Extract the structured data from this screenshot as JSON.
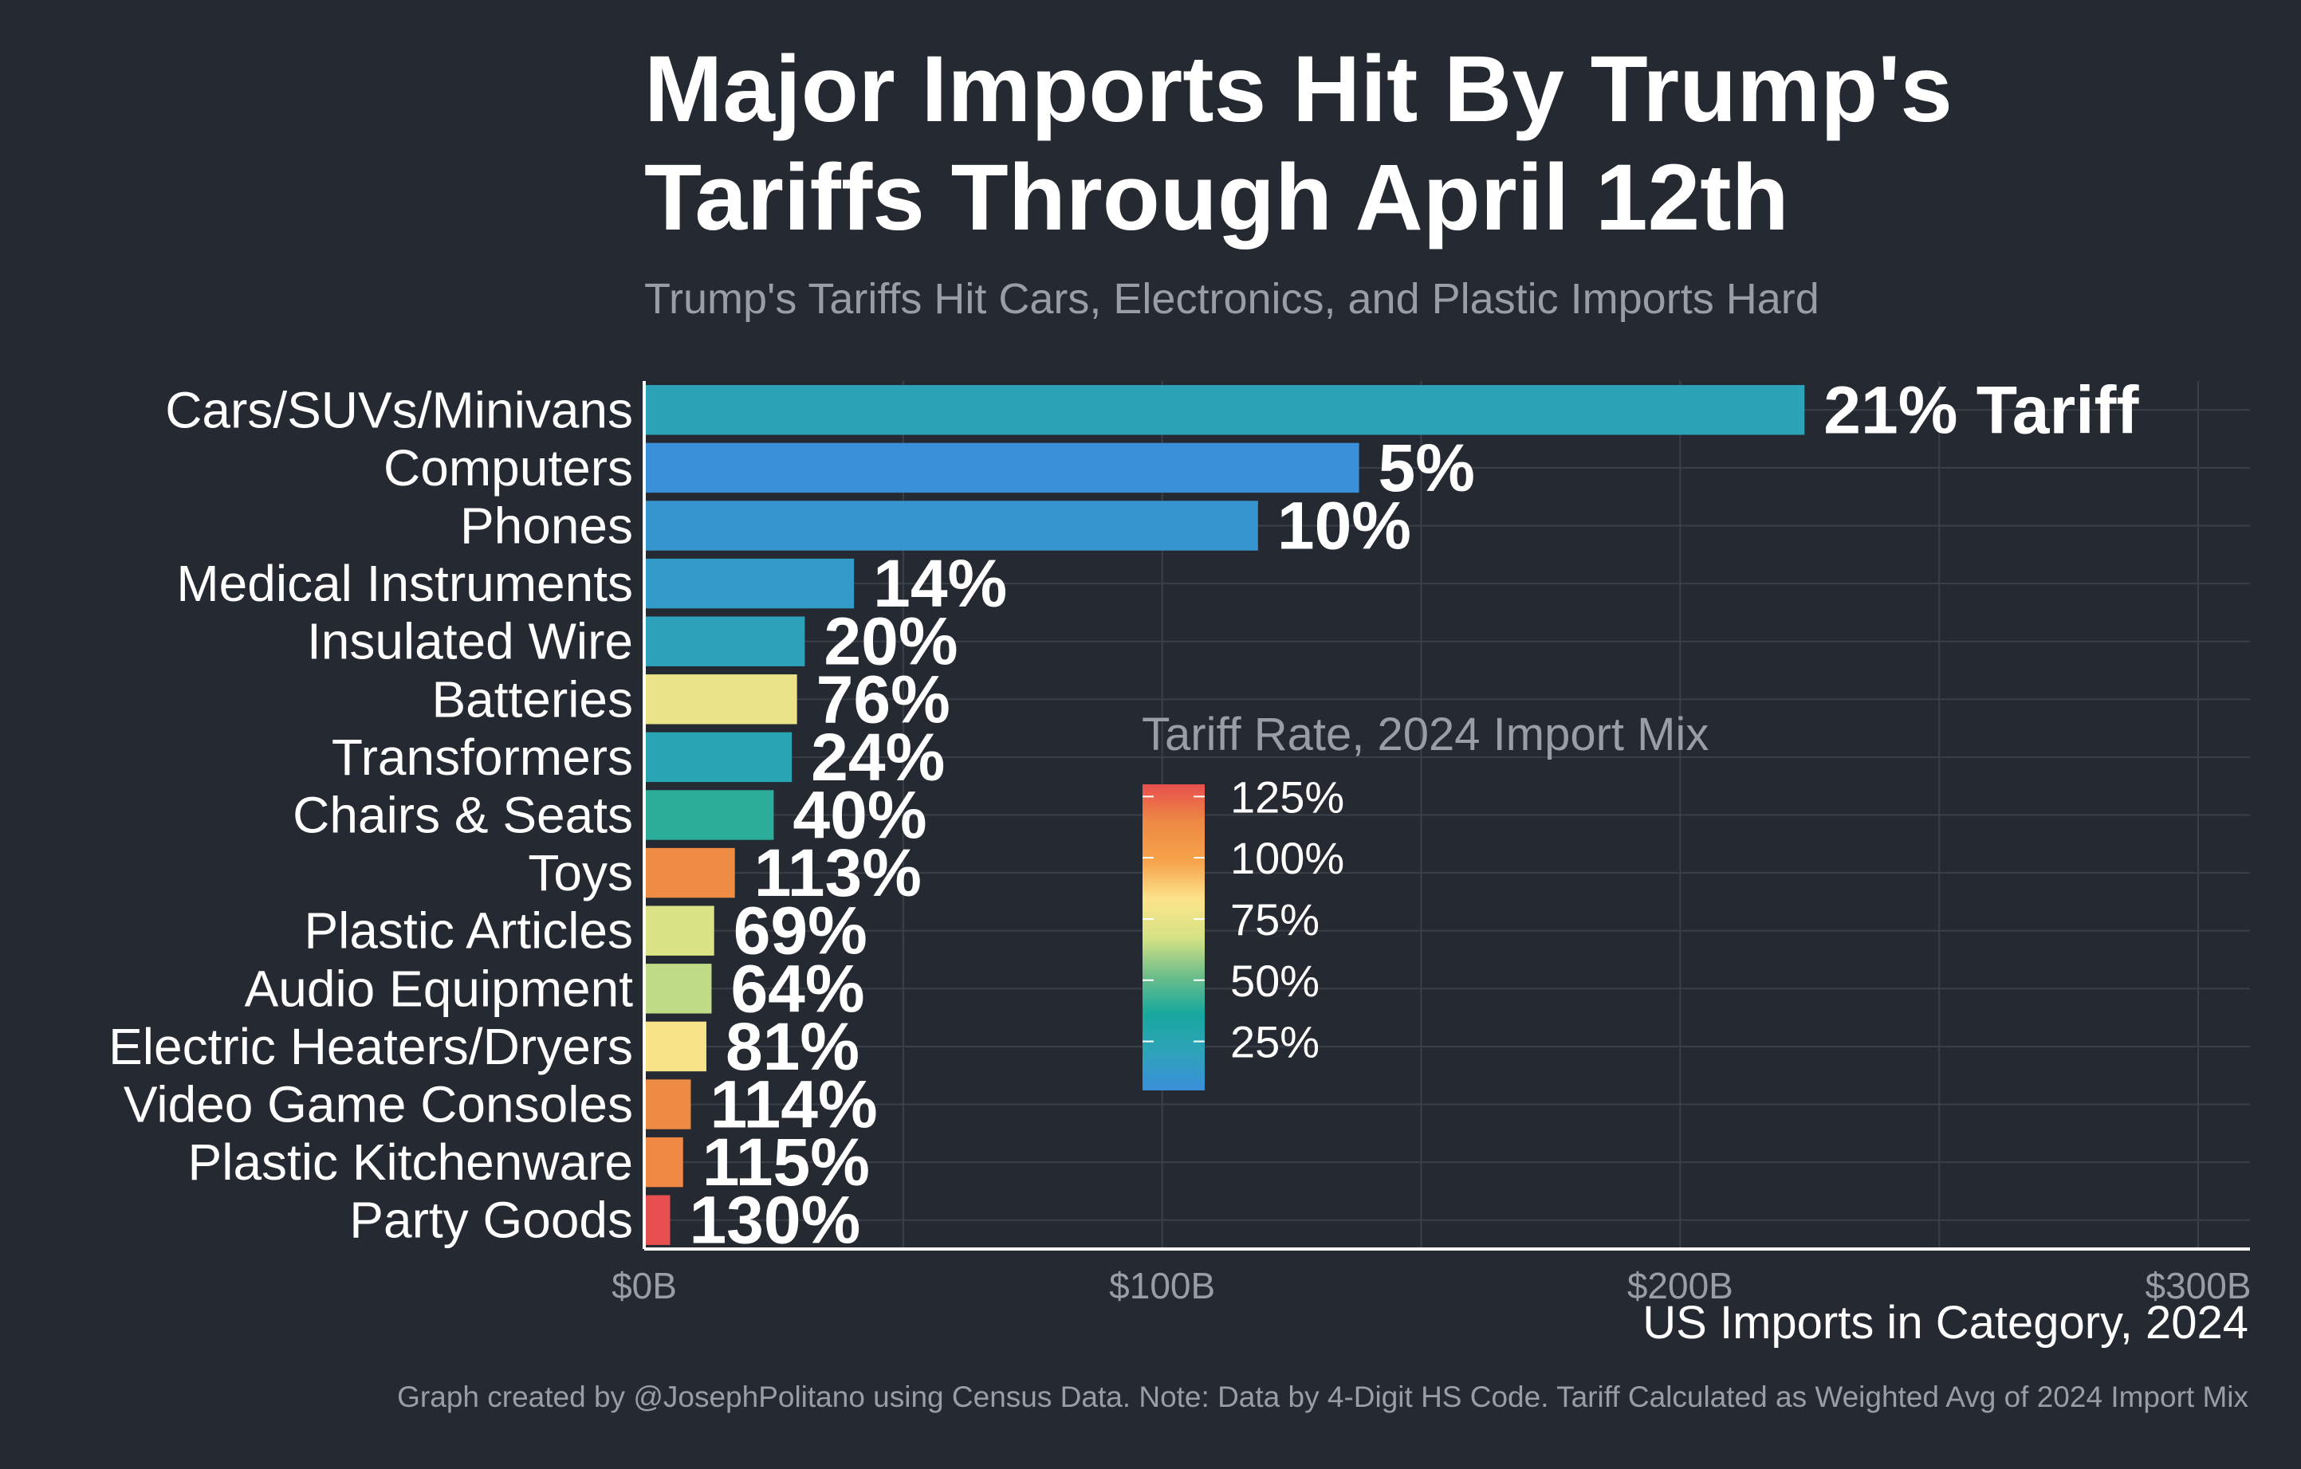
{
  "title_lines": [
    "Major Imports Hit By Trump's",
    "Tariffs Through April 12th"
  ],
  "subtitle": "Trump's Tariffs Hit Cars, Electronics, and Plastic Imports Hard",
  "caption": "Graph created by @JosephPolitano using Census Data. Note: Data by 4-Digit HS Code. Tariff Calculated as Weighted Avg of 2024 Import Mix",
  "colors": {
    "background": "#252931",
    "grid": "#3b3f47",
    "axis": "#ffffff",
    "text": "#ffffff",
    "muted": "#9a9da3",
    "scale": [
      "#3a8fd9",
      "#2ea3b9",
      "#16a89e",
      "#6fbe8a",
      "#d6e384",
      "#fde38a",
      "#f6a24a",
      "#ee8a43",
      "#e8504f"
    ]
  },
  "chart_data": {
    "type": "bar",
    "orientation": "horizontal",
    "categories": [
      "Cars/SUVs/Minivans",
      "Computers",
      "Phones",
      "Medical Instruments",
      "Insulated Wire",
      "Batteries",
      "Transformers",
      "Chairs & Seats",
      "Toys",
      "Plastic Articles",
      "Audio Equipment",
      "Electric Heaters/Dryers",
      "Video Game Consoles",
      "Plastic Kitchenware",
      "Party Goods"
    ],
    "values": [
      224,
      138,
      118.5,
      40.5,
      31,
      29.5,
      28.5,
      25,
      17.5,
      13.5,
      13,
      12,
      9,
      7.5,
      5
    ],
    "tariff_rate": [
      21,
      5,
      10,
      14,
      20,
      76,
      24,
      40,
      113,
      69,
      64,
      81,
      114,
      115,
      130
    ],
    "bar_labels": [
      "21% Tariff",
      "5%",
      "10%",
      "14%",
      "20%",
      "76%",
      "24%",
      "40%",
      "113%",
      "69%",
      "64%",
      "81%",
      "114%",
      "115%",
      "130%"
    ],
    "xlabel": "US Imports in Category, 2024",
    "x_ticks": [
      0,
      100,
      200,
      300
    ],
    "x_tick_labels": [
      "$0B",
      "$100B",
      "$200B",
      "$300B"
    ],
    "xlim": [
      0,
      310
    ],
    "grid": true,
    "legend": {
      "title": "Tariff Rate, 2024 Import Mix",
      "ticks": [
        125,
        100,
        75,
        50,
        25
      ],
      "tick_labels": [
        "125%",
        "100%",
        "75%",
        "50%",
        "25%"
      ],
      "range": [
        5,
        130
      ]
    }
  }
}
